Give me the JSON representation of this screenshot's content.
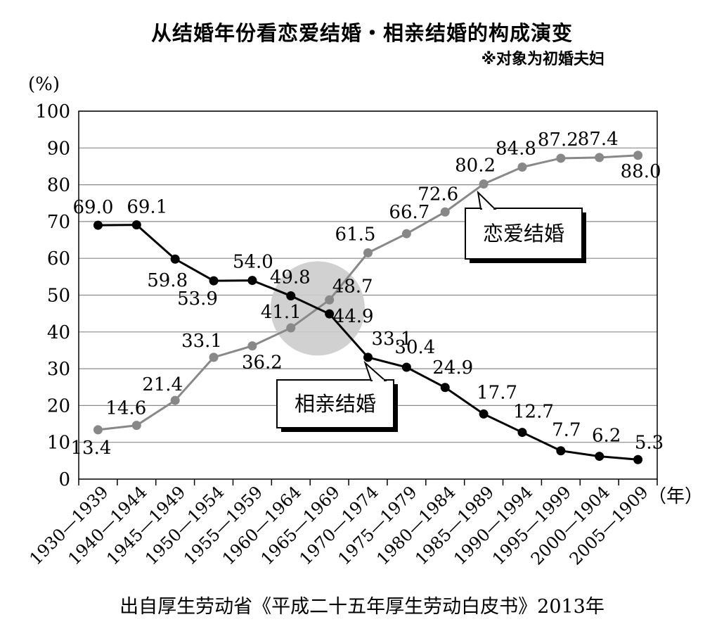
{
  "title": "从结婚年份看恋爱结婚・相亲结婚的构成演变",
  "subtitle": "※对象为初婚夫妇",
  "source": "出自厚生劳动省《平成二十五年厚生劳动白皮书》2013年",
  "chart_data": {
    "type": "line",
    "ylabel": "(%)",
    "xlabel": "（年）",
    "ylim": [
      0,
      100
    ],
    "yticks": [
      0,
      10,
      20,
      30,
      40,
      50,
      60,
      70,
      80,
      90,
      100
    ],
    "grid": true,
    "categories": [
      "1930—1939",
      "1940—1944",
      "1945—1949",
      "1950—1954",
      "1955—1959",
      "1960—1964",
      "1965—1969",
      "1970—1974",
      "1975—1979",
      "1980—1984",
      "1985—1989",
      "1990—1994",
      "1995—1999",
      "2000—1904",
      "2005—1909"
    ],
    "series": [
      {
        "name": "恋爱结婚",
        "color": "#888888",
        "values": [
          13.4,
          14.6,
          21.4,
          33.1,
          36.2,
          41.1,
          48.7,
          61.5,
          66.7,
          72.6,
          80.2,
          84.8,
          87.2,
          87.4,
          88.0
        ],
        "labels": [
          "13.4",
          "14.6",
          "21.4",
          "33.1",
          "36.2",
          "41.1",
          "48.7",
          "61.5",
          "66.7",
          "72.6",
          "80.2",
          "84.8",
          "87.2",
          "87.4",
          "88.0"
        ]
      },
      {
        "name": "相亲结婚",
        "color": "#000000",
        "values": [
          69.0,
          69.1,
          59.8,
          53.9,
          54.0,
          49.8,
          44.9,
          33.1,
          30.4,
          24.9,
          17.7,
          12.7,
          7.7,
          6.2,
          5.3
        ],
        "labels": [
          "69.0",
          "69.1",
          "59.8",
          "53.9",
          "54.0",
          "49.8",
          "44.9",
          "33.1",
          "30.4",
          "24.9",
          "17.7",
          "12.7",
          "7.7",
          "6.2",
          "5.3"
        ]
      }
    ],
    "annotations": [
      {
        "text": "恋爱结婚",
        "series": "恋爱结婚"
      },
      {
        "text": "相亲结婚",
        "series": "相亲结婚"
      }
    ]
  }
}
